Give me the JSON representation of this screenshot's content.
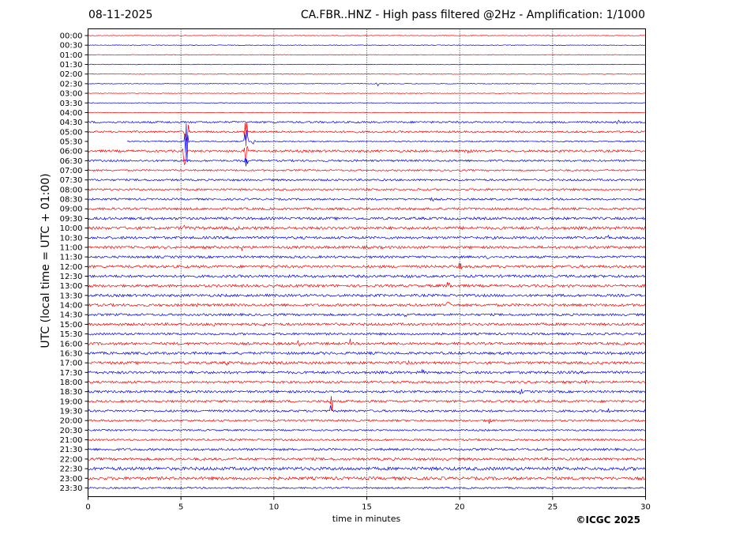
{
  "header": {
    "date": "08-11-2025",
    "title": "CA.FBR..HNZ - High pass filtered @2Hz - Amplification: 1/1000"
  },
  "footer": {
    "xlabel": "time in minutes",
    "copyright": "©ICGC 2025"
  },
  "chart_data": {
    "type": "line",
    "title": "CA.FBR..HNZ - High pass filtered @2Hz - Amplification: 1/1000",
    "xlabel": "time in minutes",
    "ylabel": "UTC (local time = UTC + 01:00)",
    "xlim": [
      0,
      30
    ],
    "x_ticks": [
      0,
      5,
      10,
      15,
      20,
      25,
      30
    ],
    "grid": "vertical dotted at x ticks",
    "row_colors": [
      "#ff0000",
      "#0000ff"
    ],
    "rows": [
      "00:00",
      "00:30",
      "01:00",
      "01:30",
      "02:00",
      "02:30",
      "03:00",
      "03:30",
      "04:00",
      "04:30",
      "05:00",
      "05:30",
      "06:00",
      "06:30",
      "07:00",
      "07:30",
      "08:00",
      "08:30",
      "09:00",
      "09:30",
      "10:00",
      "10:30",
      "11:00",
      "11:30",
      "12:00",
      "12:30",
      "13:00",
      "13:30",
      "14:00",
      "14:30",
      "15:00",
      "15:30",
      "16:00",
      "16:30",
      "17:00",
      "17:30",
      "18:00",
      "18:30",
      "19:00",
      "19:30",
      "20:00",
      "20:30",
      "21:00",
      "21:30",
      "22:00",
      "22:30",
      "23:00",
      "23:30"
    ],
    "row_start_minute": {
      "05:30": 2.1
    },
    "row_noise": [
      0.4,
      0.4,
      0.4,
      0.4,
      0.4,
      0.4,
      0.4,
      0.4,
      0.4,
      1.2,
      1.2,
      0.8,
      1.4,
      1.2,
      1.0,
      1.2,
      1.2,
      1.2,
      1.4,
      1.6,
      1.8,
      1.6,
      1.6,
      1.4,
      1.6,
      1.6,
      1.6,
      1.6,
      1.6,
      1.4,
      1.6,
      1.4,
      1.6,
      1.6,
      1.6,
      1.6,
      1.4,
      1.4,
      1.4,
      1.4,
      1.2,
      1.0,
      1.2,
      1.4,
      1.6,
      2.0,
      1.8,
      1.0
    ],
    "events": [
      {
        "row": "02:30",
        "minute": 15.6,
        "amplitude": 3
      },
      {
        "row": "04:30",
        "minute": 28.5,
        "amplitude": 3
      },
      {
        "row": "05:00",
        "minute": 5.3,
        "amplitude": 30
      },
      {
        "row": "05:00",
        "minute": 8.5,
        "amplitude": 30
      },
      {
        "row": "05:30",
        "minute": 5.3,
        "amplitude": 35
      },
      {
        "row": "05:30",
        "minute": 8.5,
        "amplitude": 35
      },
      {
        "row": "05:30",
        "minute": 8.9,
        "amplitude": 6
      },
      {
        "row": "06:00",
        "minute": 5.2,
        "amplitude": 20
      },
      {
        "row": "06:00",
        "minute": 8.5,
        "amplitude": 20
      },
      {
        "row": "06:30",
        "minute": 8.5,
        "amplitude": 10
      },
      {
        "row": "06:00",
        "minute": 20.5,
        "amplitude": 3
      },
      {
        "row": "07:30",
        "minute": 23.0,
        "amplitude": 3
      },
      {
        "row": "08:00",
        "minute": 17.8,
        "amplitude": 3
      },
      {
        "row": "08:30",
        "minute": 18.5,
        "amplitude": 3
      },
      {
        "row": "09:30",
        "minute": 1.0,
        "amplitude": 3
      },
      {
        "row": "10:00",
        "minute": 5.2,
        "amplitude": 5
      },
      {
        "row": "10:00",
        "minute": 8.0,
        "amplitude": 3
      },
      {
        "row": "10:30",
        "minute": 28.0,
        "amplitude": 3
      },
      {
        "row": "11:00",
        "minute": 8.3,
        "amplitude": 5
      },
      {
        "row": "11:00",
        "minute": 14.0,
        "amplitude": 3
      },
      {
        "row": "11:30",
        "minute": 21.5,
        "amplitude": 3
      },
      {
        "row": "12:00",
        "minute": 20.0,
        "amplitude": 7
      },
      {
        "row": "12:30",
        "minute": 17.3,
        "amplitude": 3
      },
      {
        "row": "13:00",
        "minute": 19.4,
        "amplitude": 8
      },
      {
        "row": "13:00",
        "minute": 25.8,
        "amplitude": 3
      },
      {
        "row": "14:00",
        "minute": 19.4,
        "amplitude": 10
      },
      {
        "row": "14:00",
        "minute": 5.9,
        "amplitude": 3
      },
      {
        "row": "14:30",
        "minute": 17.1,
        "amplitude": 3
      },
      {
        "row": "15:00",
        "minute": 6.8,
        "amplitude": 7
      },
      {
        "row": "15:00",
        "minute": 9.5,
        "amplitude": 5
      },
      {
        "row": "15:30",
        "minute": 18.3,
        "amplitude": 3
      },
      {
        "row": "16:00",
        "minute": 11.3,
        "amplitude": 6
      },
      {
        "row": "16:00",
        "minute": 14.1,
        "amplitude": 6
      },
      {
        "row": "17:00",
        "minute": 7.5,
        "amplitude": 3
      },
      {
        "row": "17:00",
        "minute": 17.2,
        "amplitude": 3
      },
      {
        "row": "17:30",
        "minute": 18.0,
        "amplitude": 3
      },
      {
        "row": "18:00",
        "minute": 26.8,
        "amplitude": 3
      },
      {
        "row": "18:30",
        "minute": 23.3,
        "amplitude": 4
      },
      {
        "row": "19:00",
        "minute": 13.1,
        "amplitude": 14
      },
      {
        "row": "19:30",
        "minute": 13.1,
        "amplitude": 10
      },
      {
        "row": "19:30",
        "minute": 28.0,
        "amplitude": 3
      },
      {
        "row": "20:00",
        "minute": 21.6,
        "amplitude": 5
      }
    ]
  }
}
